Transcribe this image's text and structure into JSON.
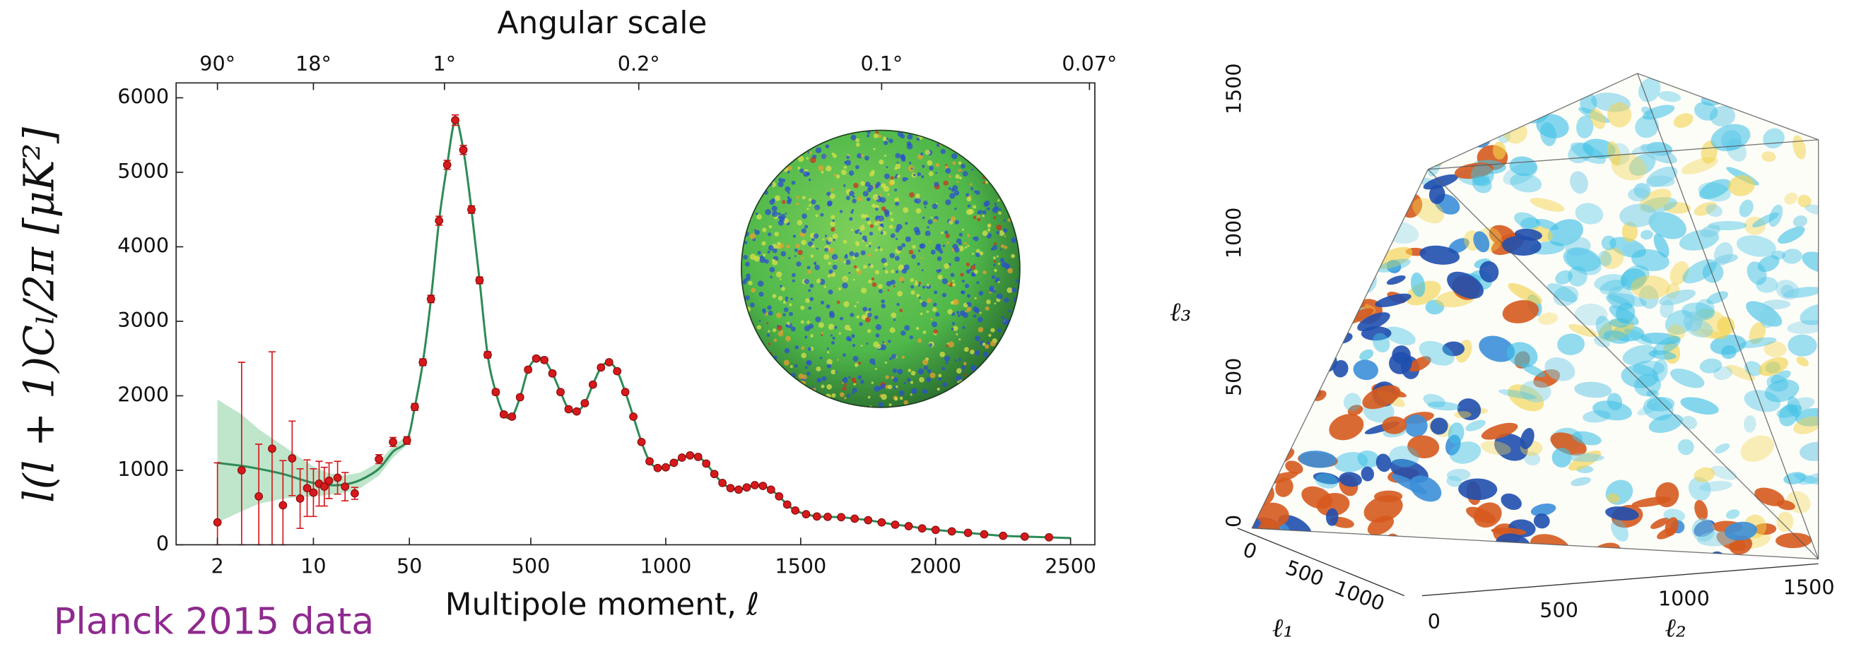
{
  "chart_data": [
    {
      "type": "line",
      "x2label": "Angular scale",
      "xlabel": "Multipole moment, ℓ",
      "ylabel": "l(l + 1)Cₗ/2π [μK²]",
      "annotation": "Planck 2015 data",
      "annotation_color": "#8e2a8e",
      "xscale": [
        "log",
        "linear"
      ],
      "xbreak": 50,
      "xlim": [
        1,
        2590
      ],
      "ylim": [
        0,
        6200
      ],
      "xticks": [
        2,
        10,
        50,
        500,
        1000,
        1500,
        2000,
        2500
      ],
      "yticks": [
        0,
        1000,
        2000,
        3000,
        4000,
        5000,
        6000
      ],
      "x2ticks": [
        {
          "value": 2,
          "label": "90°"
        },
        {
          "value": 10,
          "label": "18°"
        },
        {
          "value": 180,
          "label": "1°"
        },
        {
          "value": 900,
          "label": "0.2°"
        },
        {
          "value": 1800,
          "label": "0.1°"
        },
        {
          "value": 2570,
          "label": "0.07°"
        }
      ],
      "band": {
        "color": "#a9dcb9",
        "x": [
          2,
          3,
          4,
          6,
          8,
          10,
          13,
          17,
          22,
          30,
          38,
          48
        ],
        "lower": [
          300,
          450,
          550,
          620,
          640,
          650,
          670,
          700,
          760,
          930,
          1170,
          1340
        ],
        "upper": [
          1950,
          1750,
          1550,
          1330,
          1170,
          1050,
          960,
          930,
          970,
          1110,
          1330,
          1460
        ]
      },
      "series": [
        {
          "color": "#2e8b57",
          "x": [
            2,
            3,
            4,
            6,
            8,
            10,
            13,
            17,
            22,
            30,
            38,
            48,
            70,
            100,
            130,
            160,
            190,
            220,
            250,
            280,
            310,
            340,
            370,
            400,
            430,
            460,
            490,
            520,
            550,
            580,
            610,
            640,
            670,
            700,
            730,
            760,
            790,
            820,
            850,
            880,
            910,
            940,
            970,
            1000,
            1030,
            1060,
            1090,
            1120,
            1150,
            1180,
            1210,
            1240,
            1270,
            1300,
            1330,
            1360,
            1390,
            1420,
            1450,
            1480,
            1520,
            1560,
            1600,
            1650,
            1700,
            1750,
            1800,
            1850,
            1900,
            1950,
            2000,
            2060,
            2120,
            2180,
            2250,
            2330,
            2420,
            2500
          ],
          "values": [
            1100,
            1060,
            1020,
            950,
            880,
            830,
            800,
            810,
            870,
            1020,
            1250,
            1400,
            1850,
            2450,
            3300,
            4350,
            5100,
            5700,
            5300,
            4500,
            3550,
            2550,
            2050,
            1750,
            1720,
            1980,
            2350,
            2500,
            2480,
            2300,
            2050,
            1820,
            1790,
            1900,
            2150,
            2380,
            2450,
            2330,
            2050,
            1720,
            1380,
            1120,
            1030,
            1040,
            1100,
            1170,
            1200,
            1180,
            1090,
            950,
            830,
            760,
            740,
            770,
            800,
            790,
            740,
            650,
            540,
            460,
            410,
            380,
            375,
            370,
            350,
            330,
            300,
            270,
            250,
            220,
            200,
            180,
            160,
            140,
            120,
            110,
            100,
            90
          ]
        },
        {
          "color": "#d7191c",
          "x": [
            2,
            3,
            4,
            5,
            6,
            7,
            8,
            9,
            10,
            11,
            12,
            13,
            15,
            17,
            20,
            30,
            38,
            48,
            70,
            100,
            130,
            160,
            190,
            220,
            250,
            280,
            310,
            340,
            370,
            400,
            430,
            460,
            490,
            520,
            550,
            580,
            610,
            640,
            670,
            700,
            730,
            760,
            790,
            820,
            850,
            880,
            910,
            940,
            970,
            1000,
            1030,
            1060,
            1090,
            1120,
            1150,
            1180,
            1210,
            1240,
            1270,
            1300,
            1330,
            1360,
            1390,
            1420,
            1450,
            1480,
            1520,
            1560,
            1600,
            1650,
            1700,
            1750,
            1800,
            1850,
            1900,
            1950,
            2000,
            2060,
            2120,
            2180,
            2250,
            2330,
            2420
          ],
          "values": [
            300,
            1000,
            650,
            1290,
            530,
            1160,
            620,
            760,
            700,
            820,
            780,
            860,
            900,
            780,
            690,
            1150,
            1380,
            1400,
            1850,
            2450,
            3300,
            4350,
            5100,
            5700,
            5300,
            4500,
            3550,
            2550,
            2050,
            1750,
            1720,
            1980,
            2350,
            2500,
            2480,
            2300,
            2050,
            1820,
            1790,
            1900,
            2150,
            2380,
            2450,
            2330,
            2050,
            1720,
            1380,
            1120,
            1030,
            1040,
            1100,
            1170,
            1200,
            1180,
            1090,
            950,
            830,
            760,
            740,
            770,
            800,
            790,
            740,
            650,
            540,
            460,
            410,
            380,
            375,
            370,
            350,
            330,
            300,
            270,
            250,
            220,
            200,
            180,
            160,
            140,
            120,
            110,
            100
          ],
          "errors": [
            800,
            1450,
            700,
            1300,
            600,
            500,
            400,
            380,
            320,
            300,
            260,
            240,
            220,
            190,
            80,
            60,
            60,
            50,
            45,
            45,
            50,
            60,
            60,
            70,
            60,
            50,
            45,
            40,
            35,
            30,
            30,
            30,
            30,
            30,
            30,
            30,
            28,
            28,
            28,
            28,
            28,
            28,
            28,
            28,
            25,
            25,
            25,
            25,
            22,
            22,
            22,
            22,
            22,
            22,
            22,
            20,
            20,
            20,
            20,
            20,
            20,
            20,
            20,
            20,
            20,
            18,
            18,
            18,
            18,
            18,
            18,
            18,
            18,
            18,
            18,
            18,
            18,
            18,
            20,
            20,
            20,
            22,
            25
          ]
        }
      ]
    },
    {
      "type": "volume",
      "xlabel": "ℓ₁",
      "ylabel": "ℓ₂",
      "zlabel": "ℓ₃",
      "xlim": [
        0,
        1500
      ],
      "ylim": [
        0,
        1500
      ],
      "zlim": [
        0,
        1500
      ],
      "xticks": [
        0,
        500,
        1000
      ],
      "yticks": [
        0,
        500,
        1000,
        1500
      ],
      "zticks": [
        0,
        500,
        1000,
        1500
      ]
    }
  ]
}
